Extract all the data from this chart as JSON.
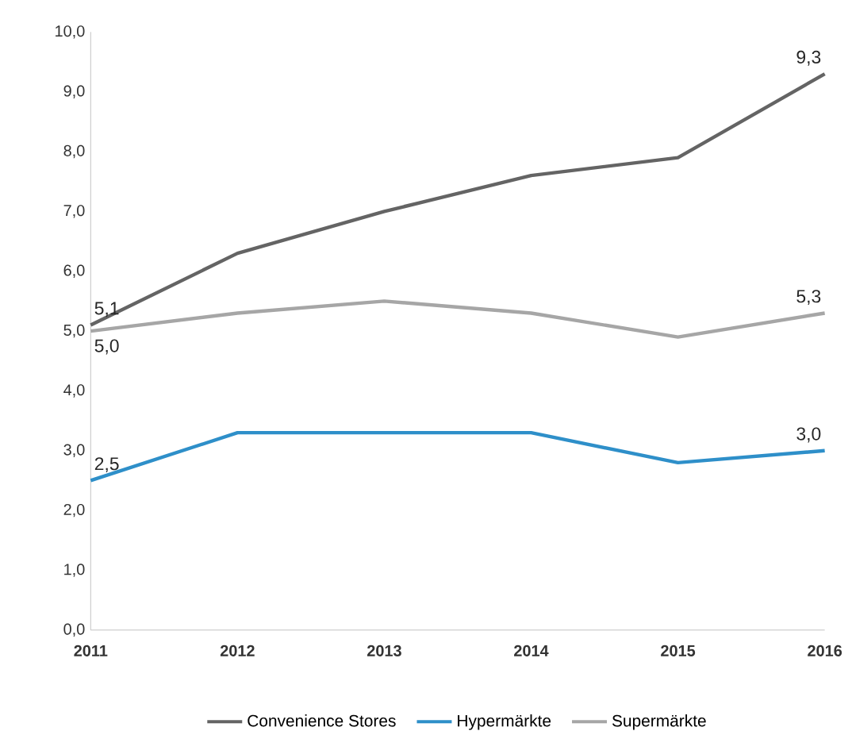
{
  "chart_data": {
    "type": "line",
    "x": [
      2011,
      2012,
      2013,
      2014,
      2015,
      2016
    ],
    "xlim": [
      2011,
      2016
    ],
    "xticks": [
      2011,
      2012,
      2013,
      2014,
      2015,
      2016
    ],
    "ylim": [
      0,
      10
    ],
    "yticks": [
      {
        "value": 0,
        "label": "0,0"
      },
      {
        "value": 1,
        "label": "1,0"
      },
      {
        "value": 2,
        "label": "2,0"
      },
      {
        "value": 3,
        "label": "3,0"
      },
      {
        "value": 4,
        "label": "4,0"
      },
      {
        "value": 5,
        "label": "5,0"
      },
      {
        "value": 6,
        "label": "6,0"
      },
      {
        "value": 7,
        "label": "7,0"
      },
      {
        "value": 8,
        "label": "8,0"
      },
      {
        "value": 9,
        "label": "9,0"
      },
      {
        "value": 10,
        "label": "10,0"
      }
    ],
    "series": [
      {
        "name": "Convenience Stores",
        "color": "#646464",
        "values": [
          5.1,
          6.3,
          7.0,
          7.6,
          7.9,
          9.3
        ],
        "value_labels": [
          "5,1",
          null,
          null,
          null,
          null,
          "9,3"
        ]
      },
      {
        "name": "Hypermärkte",
        "color": "#2e8fc9",
        "values": [
          2.5,
          3.3,
          3.3,
          3.3,
          2.8,
          3.0
        ],
        "value_labels": [
          "2,5",
          null,
          null,
          null,
          null,
          "3,0"
        ]
      },
      {
        "name": "Supermärkte",
        "color": "#a6a6a6",
        "values": [
          5.0,
          5.3,
          5.5,
          5.3,
          4.9,
          5.3
        ],
        "value_labels": [
          "5,0",
          null,
          null,
          null,
          null,
          "5,3"
        ]
      }
    ],
    "grid": false,
    "legend": "bottom",
    "marker": "none",
    "line_style": "solid"
  }
}
